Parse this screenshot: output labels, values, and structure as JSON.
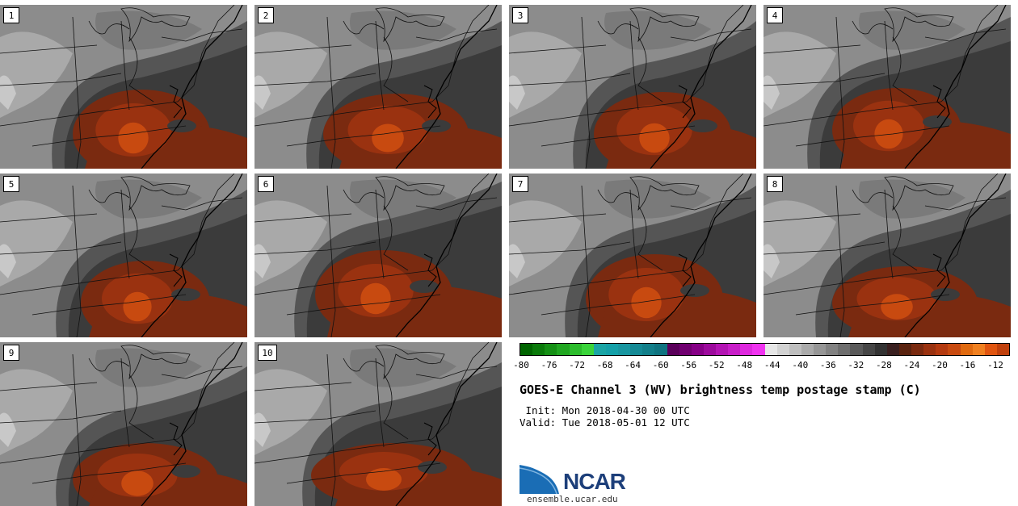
{
  "panels": [
    {
      "number": "1"
    },
    {
      "number": "2"
    },
    {
      "number": "3"
    },
    {
      "number": "4"
    },
    {
      "number": "5"
    },
    {
      "number": "6"
    },
    {
      "number": "7"
    },
    {
      "number": "8"
    },
    {
      "number": "9"
    },
    {
      "number": "10"
    }
  ],
  "colorbar": {
    "ticks": [
      "-80",
      "-76",
      "-72",
      "-68",
      "-64",
      "-60",
      "-56",
      "-52",
      "-48",
      "-44",
      "-40",
      "-36",
      "-32",
      "-28",
      "-24",
      "-20",
      "-16",
      "-12"
    ],
    "colors": [
      "#006400",
      "#0a7a0a",
      "#159015",
      "#20a620",
      "#2cbc2c",
      "#3ad43a",
      "#1aa5a5",
      "#14a0a8",
      "#1896a0",
      "#158a95",
      "#127f8a",
      "#0f7480",
      "#5a005a",
      "#700070",
      "#860086",
      "#9c0a9c",
      "#b314b3",
      "#c81ec8",
      "#de28de",
      "#f033f0",
      "#e6e6e6",
      "#d2d2d2",
      "#bebebe",
      "#aaaaaa",
      "#969696",
      "#828282",
      "#6e6e6e",
      "#5a5a5a",
      "#464646",
      "#333333",
      "#3a2020",
      "#5a2310",
      "#7a2a10",
      "#9a3210",
      "#b43a10",
      "#c84a10",
      "#e06a10",
      "#f08020",
      "#e05510",
      "#c0400c"
    ]
  },
  "title": "GOES-E Channel 3 (WV) brightness temp postage stamp (C)",
  "init": " Init: Mon 2018-04-30 00 UTC",
  "valid": "Valid: Tue 2018-05-01 12 UTC",
  "logo": {
    "text": "NCAR",
    "site": "ensemble.ucar.edu"
  }
}
